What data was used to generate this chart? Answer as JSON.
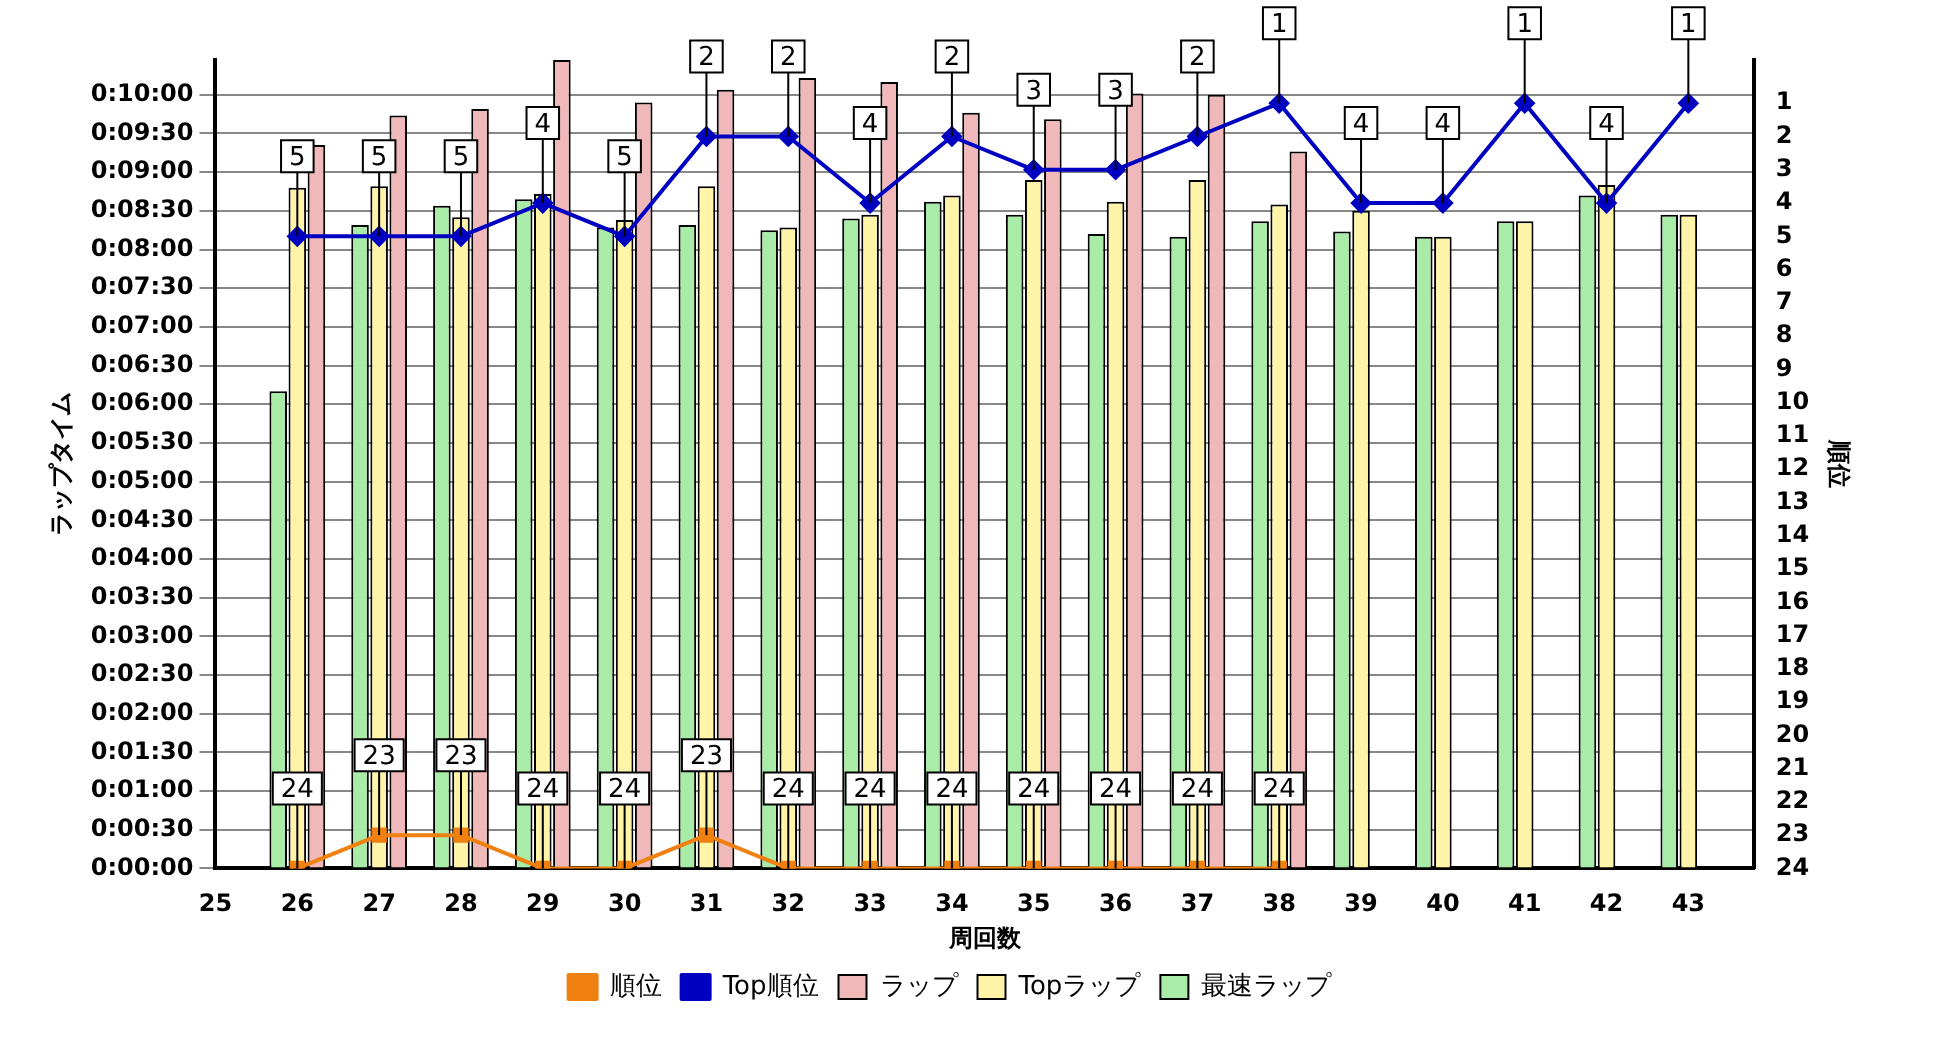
{
  "chart_data": {
    "type": "bar",
    "xlabel": "周回数",
    "ylabel": "ラップタイム",
    "y2label": "順位",
    "x": [
      26,
      27,
      28,
      29,
      30,
      31,
      32,
      33,
      34,
      35,
      36,
      37,
      38,
      39,
      40,
      41,
      42,
      43
    ],
    "xlim": [
      25,
      43.8
    ],
    "xticks": [
      25,
      26,
      27,
      28,
      29,
      30,
      31,
      32,
      33,
      34,
      35,
      36,
      37,
      38,
      39,
      40,
      41,
      42,
      43
    ],
    "ylim": [
      0,
      627
    ],
    "yticks": [
      {
        "value": 0,
        "label": "0:00:00"
      },
      {
        "value": 30,
        "label": "0:00:30"
      },
      {
        "value": 60,
        "label": "0:01:00"
      },
      {
        "value": 90,
        "label": "0:01:30"
      },
      {
        "value": 120,
        "label": "0:02:00"
      },
      {
        "value": 150,
        "label": "0:02:30"
      },
      {
        "value": 180,
        "label": "0:03:00"
      },
      {
        "value": 210,
        "label": "0:03:30"
      },
      {
        "value": 240,
        "label": "0:04:00"
      },
      {
        "value": 270,
        "label": "0:04:30"
      },
      {
        "value": 300,
        "label": "0:05:00"
      },
      {
        "value": 330,
        "label": "0:05:30"
      },
      {
        "value": 360,
        "label": "0:06:00"
      },
      {
        "value": 390,
        "label": "0:06:30"
      },
      {
        "value": 420,
        "label": "0:07:00"
      },
      {
        "value": 450,
        "label": "0:07:30"
      },
      {
        "value": 480,
        "label": "0:08:00"
      },
      {
        "value": 510,
        "label": "0:08:30"
      },
      {
        "value": 540,
        "label": "0:09:00"
      },
      {
        "value": 570,
        "label": "0:09:30"
      },
      {
        "value": 600,
        "label": "0:10:00"
      }
    ],
    "y2lim": [
      24,
      -0.3
    ],
    "y2ticks": [
      1,
      2,
      3,
      4,
      5,
      6,
      7,
      8,
      9,
      10,
      11,
      12,
      13,
      14,
      15,
      16,
      17,
      18,
      19,
      20,
      21,
      22,
      23,
      24
    ],
    "grid": "y",
    "legend": "bottom",
    "series": [
      {
        "name": "順位",
        "type": "line",
        "axis": "y2",
        "color": "#f08010",
        "marker": "square",
        "values": [
          24,
          23,
          23,
          24,
          24,
          23,
          24,
          24,
          24,
          24,
          24,
          24,
          24,
          null,
          null,
          null,
          null,
          null
        ],
        "value_labels": [
          "24",
          "23",
          "23",
          "24",
          "24",
          "23",
          "24",
          "24",
          "24",
          "24",
          "24",
          "24",
          "24",
          null,
          null,
          null,
          null,
          null
        ]
      },
      {
        "name": "Top順位",
        "type": "line",
        "axis": "y2",
        "color": "#0000c0",
        "marker": "diamond",
        "values": [
          5,
          5,
          5,
          4,
          5,
          2,
          2,
          4,
          2,
          3,
          3,
          2,
          1,
          4,
          4,
          1,
          4,
          1
        ],
        "value_labels": [
          "5",
          "5",
          "5",
          "4",
          "5",
          "2",
          "2",
          "4",
          "2",
          "3",
          "3",
          "2",
          "1",
          "4",
          "4",
          "1",
          "4",
          "1"
        ]
      },
      {
        "name": "ラップ",
        "color": "#f0b8b8",
        "values": [
          561,
          584,
          589,
          627,
          594,
          604,
          613,
          610,
          586,
          581,
          601,
          600,
          556,
          null,
          null,
          null,
          null,
          null
        ]
      },
      {
        "name": "Topラップ",
        "color": "#fff4a8",
        "values": [
          528,
          529,
          505,
          523,
          503,
          529,
          497,
          507,
          522,
          534,
          517,
          534,
          515,
          510,
          490,
          502,
          530,
          507
        ]
      },
      {
        "name": "最速ラップ",
        "color": "#a8eca8",
        "values": [
          370,
          499,
          514,
          519,
          497,
          499,
          495,
          504,
          517,
          507,
          492,
          490,
          502,
          494,
          490,
          502,
          522,
          507
        ]
      }
    ]
  }
}
